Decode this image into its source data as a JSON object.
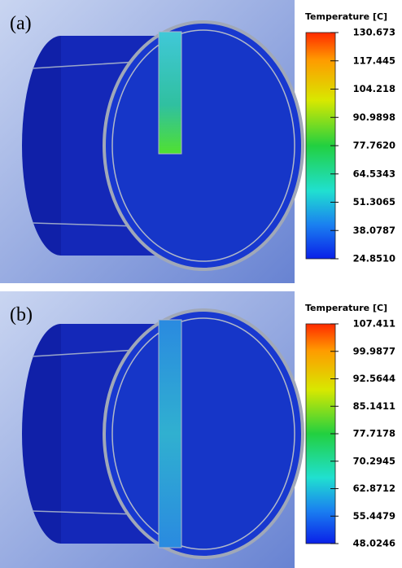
{
  "panels": [
    {
      "label": "(a)",
      "legend": {
        "title": "Temperature [C]",
        "ticks": [
          "130.673",
          "117.445",
          "104.218",
          "90.9898",
          "77.7620",
          "64.5343",
          "51.3065",
          "38.0787",
          "24.8510"
        ]
      }
    },
    {
      "label": "(b)",
      "legend": {
        "title": "Temperature [C]",
        "ticks": [
          "107.411",
          "99.9877",
          "92.5644",
          "85.1411",
          "77.7178",
          "70.2945",
          "62.8712",
          "55.4479",
          "48.0246"
        ]
      }
    }
  ]
}
